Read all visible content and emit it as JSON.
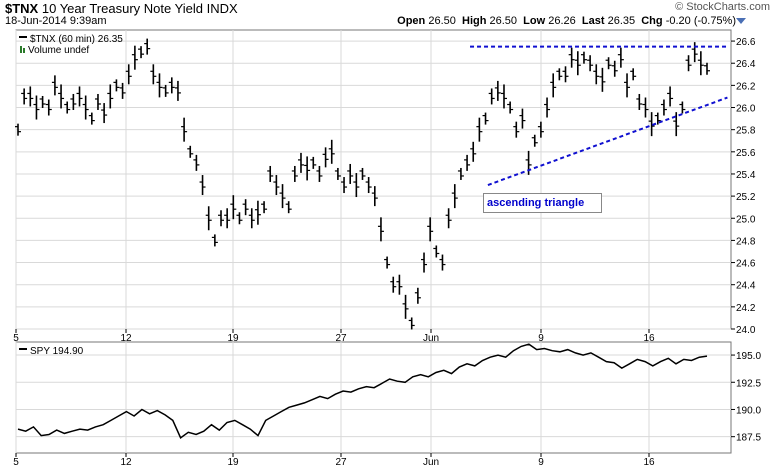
{
  "header": {
    "symbol": "$TNX",
    "name": "10 Year Treasury Note Yield",
    "exchange": "INDX",
    "date": "18-Jun-2014 9:39am",
    "watermark": "© StockCharts.com",
    "open_label": "Open",
    "open": "26.50",
    "high_label": "High",
    "high": "26.50",
    "low_label": "Low",
    "low": "26.26",
    "last_label": "Last",
    "last": "26.35",
    "chg_label": "Chg",
    "chg": "-0.20 (-0.75%)"
  },
  "colors": {
    "price": "#000000",
    "trendline": "#1010d0",
    "grid": "#d9d9d9",
    "panel_bg": "#ffffff",
    "axis": "#000000"
  },
  "chart_data": [
    {
      "type": "line",
      "legend": "$TNX (60 min) 26.35",
      "volume_label": "Volume undef",
      "x_ticks": [
        "5",
        "12",
        "19",
        "27",
        "Jun",
        "9",
        "16"
      ],
      "y_ticks": [
        "24.0",
        "24.2",
        "24.4",
        "24.6",
        "24.8",
        "25.0",
        "25.2",
        "25.4",
        "25.6",
        "25.8",
        "26.0",
        "26.2",
        "26.4",
        "26.6"
      ],
      "ylim": [
        24.0,
        26.7
      ],
      "annotation": "ascending triangle",
      "series": [
        {
          "values": [
            25.8,
            26.1,
            26.1,
            26.0,
            26.05,
            26.0,
            26.2,
            26.1,
            26.0,
            26.05,
            26.1,
            26.0,
            25.9,
            26.05,
            25.95,
            26.1,
            26.2,
            26.15,
            26.3,
            26.45,
            26.5,
            26.55,
            26.3,
            26.2,
            26.15,
            26.2,
            26.15,
            25.8,
            25.6,
            25.5,
            25.3,
            25.0,
            24.8,
            25.0,
            25.0,
            25.1,
            25.0,
            25.1,
            25.0,
            25.05,
            25.1,
            25.4,
            25.3,
            25.2,
            25.1,
            25.4,
            25.5,
            25.45,
            25.5,
            25.4,
            25.55,
            25.6,
            25.4,
            25.3,
            25.4,
            25.3,
            25.4,
            25.3,
            25.2,
            24.9,
            24.6,
            24.4,
            24.4,
            24.2,
            24.05,
            24.3,
            24.6,
            24.9,
            24.7,
            24.6,
            25.0,
            25.2,
            25.4,
            25.5,
            25.6,
            25.8,
            25.9,
            26.1,
            26.15,
            26.1,
            26.0,
            25.8,
            25.9,
            25.5,
            25.7,
            25.8,
            26.0,
            26.2,
            26.3,
            26.3,
            26.45,
            26.4,
            26.45,
            26.4,
            26.3,
            26.25,
            26.4,
            26.35,
            26.45,
            26.2,
            26.3,
            26.05,
            26.0,
            25.85,
            25.9,
            26.0,
            26.1,
            25.85,
            26.0,
            26.4,
            26.5,
            26.4,
            26.35
          ]
        }
      ],
      "trendlines": [
        {
          "name": "resistance",
          "x": [
            0.635,
            0.995
          ],
          "y": [
            26.55,
            26.55
          ]
        },
        {
          "name": "support",
          "x": [
            0.66,
            0.995
          ],
          "y": [
            25.3,
            26.09
          ]
        }
      ]
    },
    {
      "type": "line",
      "legend": "SPY 194.90",
      "x_ticks": [
        "5",
        "12",
        "19",
        "27",
        "Jun",
        "9",
        "16"
      ],
      "y_ticks": [
        "187.5",
        "190.0",
        "192.5",
        "195.0"
      ],
      "ylim": [
        186.0,
        196.2
      ],
      "series": [
        {
          "values": [
            188.2,
            188.0,
            188.4,
            187.6,
            187.7,
            188.1,
            187.8,
            188.0,
            188.2,
            188.1,
            188.4,
            188.6,
            189.0,
            189.4,
            189.8,
            189.4,
            190.0,
            189.6,
            189.9,
            189.5,
            189.0,
            187.4,
            187.9,
            187.7,
            188.0,
            188.6,
            188.1,
            188.8,
            189.0,
            188.6,
            188.2,
            187.6,
            189.0,
            189.4,
            189.8,
            190.2,
            190.4,
            190.6,
            190.9,
            191.2,
            191.0,
            191.4,
            191.7,
            191.6,
            191.9,
            192.1,
            192.0,
            192.4,
            192.8,
            192.6,
            192.5,
            193.0,
            193.2,
            193.0,
            193.4,
            193.6,
            193.3,
            193.9,
            194.2,
            194.0,
            194.5,
            194.8,
            195.0,
            194.8,
            195.4,
            195.8,
            196.0,
            195.5,
            195.6,
            195.4,
            195.3,
            195.5,
            195.2,
            195.0,
            195.2,
            194.8,
            194.4,
            194.3,
            193.8,
            194.2,
            194.6,
            194.4,
            194.0,
            194.4,
            194.7,
            194.2,
            194.6,
            194.5,
            194.8,
            194.9
          ]
        }
      ]
    }
  ]
}
